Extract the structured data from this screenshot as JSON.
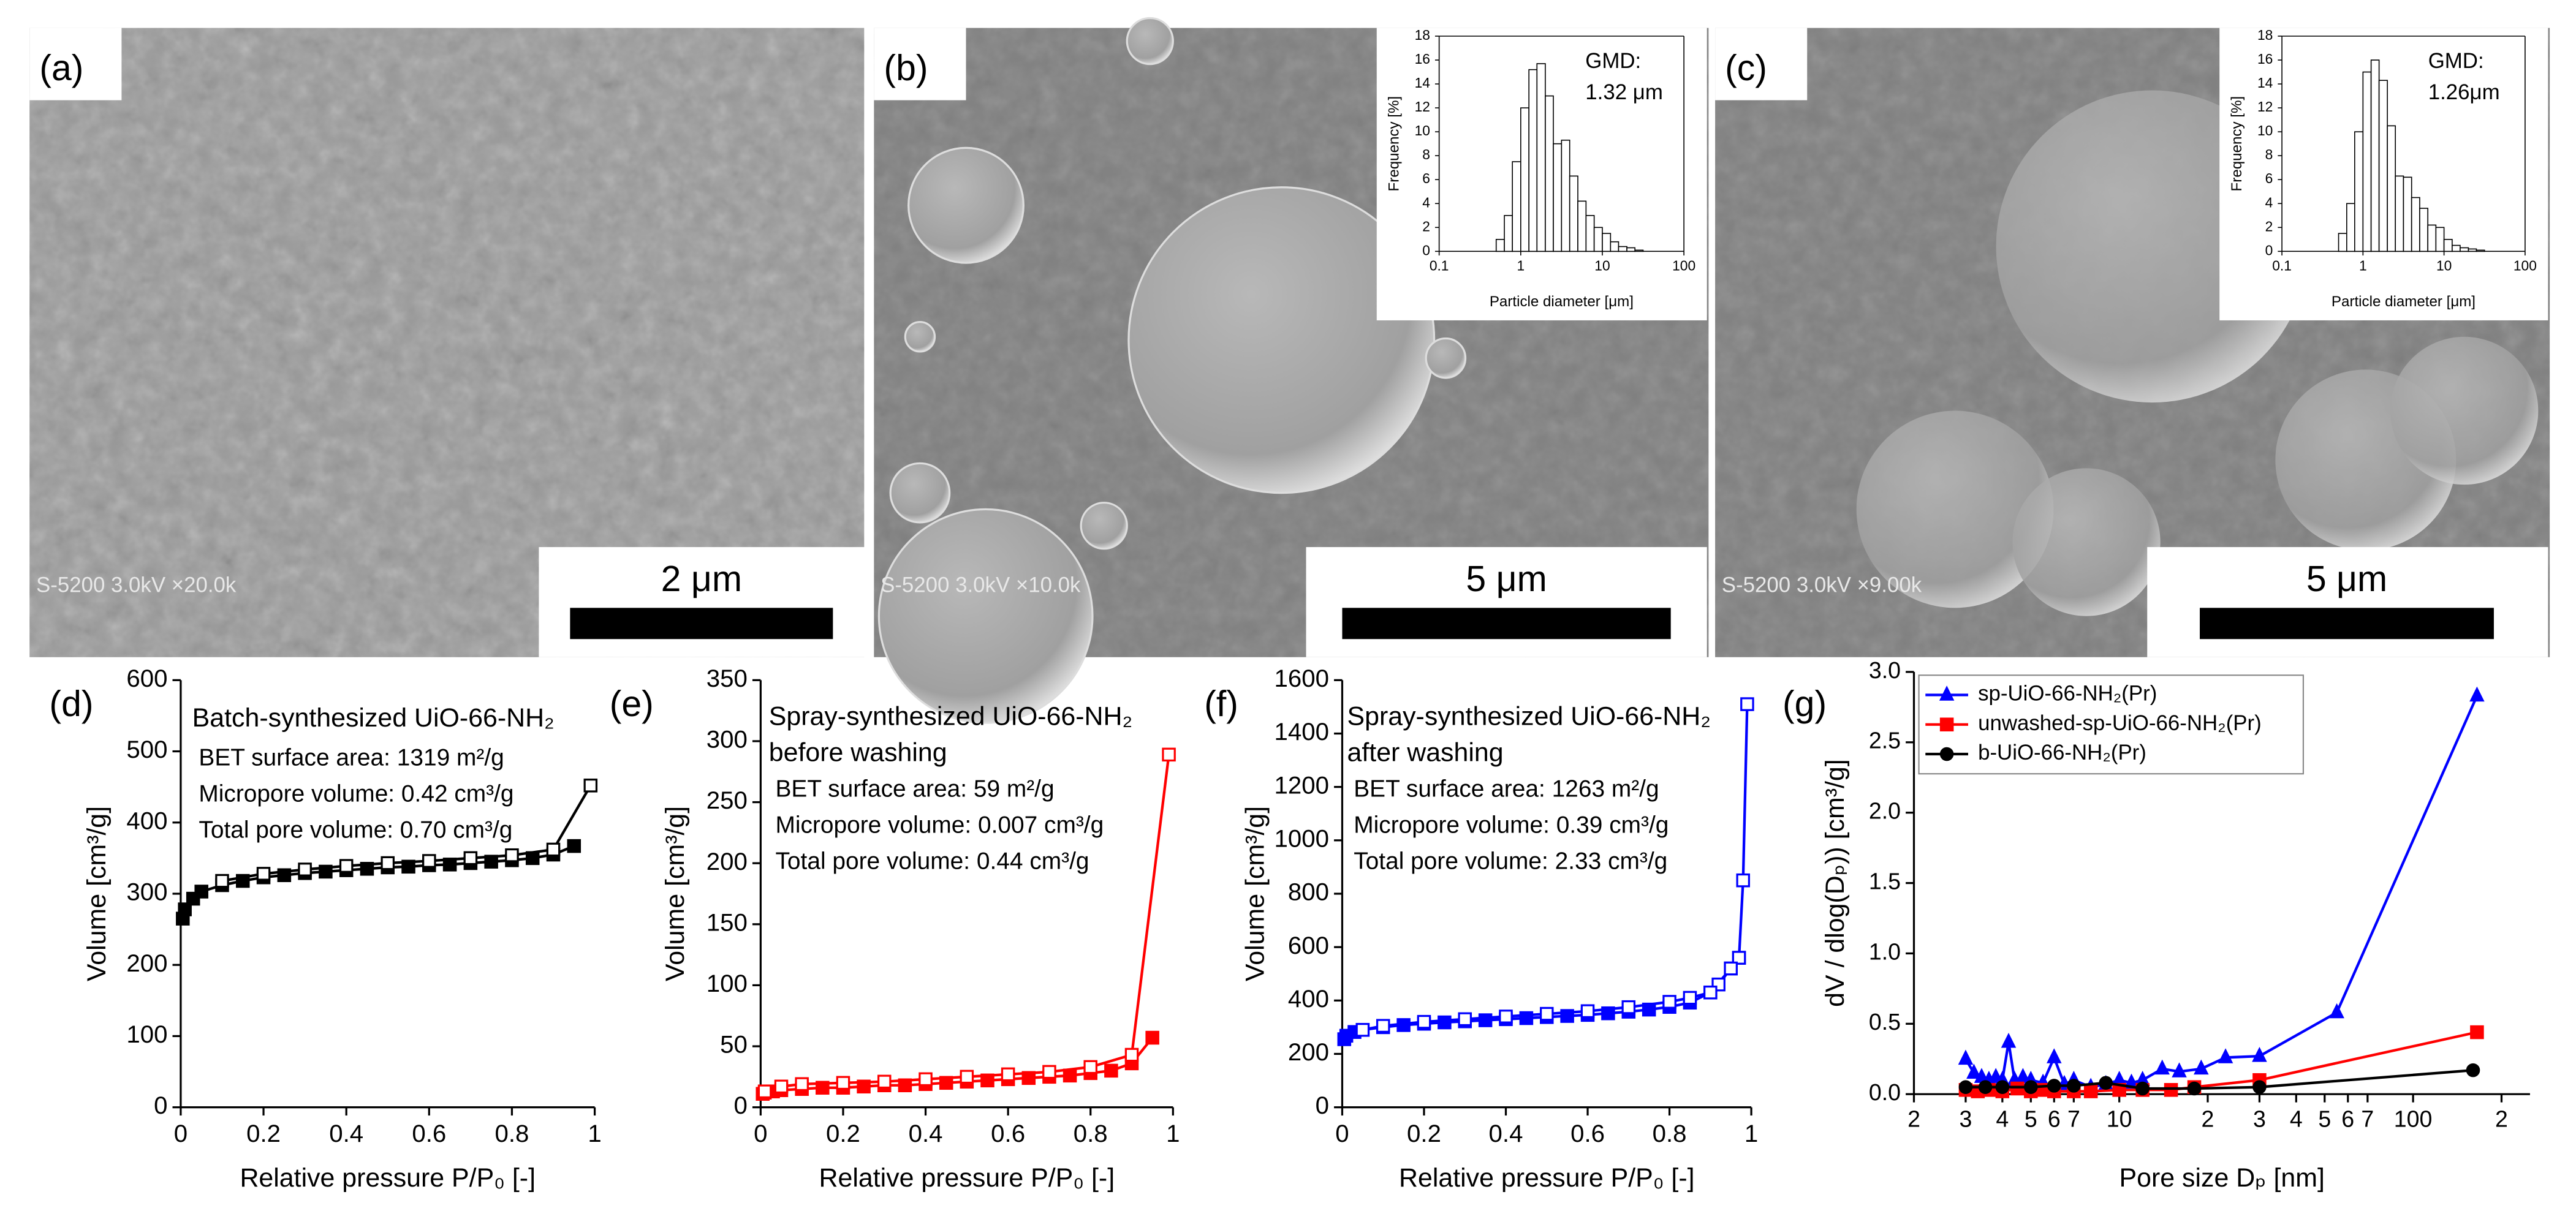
{
  "sem_panels": [
    {
      "label": "(a)",
      "caption": "S-5200 3.0kV ×20.0k",
      "scale_bar": "2 μm"
    },
    {
      "label": "(b)",
      "caption": "S-5200 3.0kV ×10.0k",
      "scale_bar": "5 μm"
    },
    {
      "label": "(c)",
      "caption": "S-5200 3.0kV ×9.00k",
      "scale_bar": "5 μm"
    }
  ],
  "chart_data": [
    {
      "type": "histogram",
      "xscale": "log",
      "xlabel": "Particle diameter [μm]",
      "ylabel": "Frequency [%]",
      "annotations": [
        "GMD:",
        "1.32 μm"
      ],
      "bins": [
        0.5,
        0.63,
        0.79,
        1,
        1.26,
        1.58,
        2,
        2.51,
        3.16,
        3.98,
        5.01,
        6.31,
        7.94,
        10,
        12.6,
        15.8,
        20,
        25.1,
        31.6
      ],
      "values": [
        1,
        3,
        7.5,
        12,
        15.2,
        15.7,
        13,
        9,
        9.3,
        6.3,
        4.2,
        3,
        2,
        1.5,
        0.8,
        0.4,
        0.3,
        0.1
      ],
      "color": "#ffffff",
      "xlim": [
        0.1,
        100
      ],
      "xticks": [
        0.1,
        1,
        10,
        100
      ],
      "ylim": [
        0,
        18
      ],
      "yticks": [
        0,
        2,
        4,
        6,
        8,
        10,
        12,
        14,
        16,
        18
      ]
    },
    {
      "type": "histogram",
      "xscale": "log",
      "xlabel": "Particle diameter [μm]",
      "ylabel": "Frequency [%]",
      "annotations": [
        "GMD:",
        "1.26μm"
      ],
      "bins": [
        0.5,
        0.63,
        0.79,
        1,
        1.26,
        1.58,
        2,
        2.51,
        3.16,
        3.98,
        5.01,
        6.31,
        7.94,
        10,
        12.6,
        15.8,
        20,
        25.1,
        31.6
      ],
      "values": [
        1.5,
        4,
        10,
        15,
        16,
        14.3,
        10.5,
        6.3,
        6.2,
        4.5,
        3.6,
        2.2,
        2,
        1,
        0.5,
        0.3,
        0.2,
        0.1
      ],
      "color": "#ffffff",
      "xlim": [
        0.1,
        100
      ],
      "xticks": [
        0.1,
        1,
        10,
        100
      ],
      "ylim": [
        0,
        18
      ],
      "yticks": [
        0,
        2,
        4,
        6,
        8,
        10,
        12,
        14,
        16,
        18
      ]
    },
    {
      "type": "line",
      "panel": "(d)",
      "title_lines": [
        "Batch-synthesized UiO-66-NH₂"
      ],
      "annotations": [
        "BET surface area: 1319 m²/g",
        "Micropore volume: 0.42 cm³/g",
        "Total pore volume: 0.70 cm³/g"
      ],
      "xlabel": "Relative pressure P/P₀ [-]",
      "ylabel": "Volume [cm³/g]",
      "xlim": [
        0,
        1
      ],
      "xticks": [
        0,
        0.2,
        0.4,
        0.6,
        0.8,
        1
      ],
      "ylim": [
        0,
        600
      ],
      "yticks": [
        0,
        100,
        200,
        300,
        400,
        500,
        600
      ],
      "series": [
        {
          "color": "#000000",
          "marker": "square",
          "filled": true,
          "x": [
            0.005,
            0.01,
            0.03,
            0.05,
            0.1,
            0.15,
            0.2,
            0.25,
            0.3,
            0.35,
            0.4,
            0.45,
            0.5,
            0.55,
            0.6,
            0.65,
            0.7,
            0.75,
            0.8,
            0.85,
            0.9,
            0.95
          ],
          "values": [
            265,
            278,
            293,
            303,
            312,
            318,
            323,
            326,
            329,
            331,
            333,
            335,
            337,
            338,
            340,
            341,
            343,
            345,
            347,
            350,
            355,
            367
          ]
        },
        {
          "color": "#000000",
          "marker": "square",
          "filled": false,
          "x": [
            0.99,
            0.9,
            0.8,
            0.7,
            0.6,
            0.5,
            0.4,
            0.3,
            0.2,
            0.1
          ],
          "values": [
            452,
            362,
            354,
            350,
            346,
            343,
            339,
            334,
            328,
            318
          ]
        }
      ]
    },
    {
      "type": "line",
      "panel": "(e)",
      "title_lines": [
        "Spray-synthesized UiO-66-NH₂",
        "before washing"
      ],
      "annotations": [
        "BET surface area: 59 m²/g",
        "Micropore volume: 0.007 cm³/g",
        "Total pore volume: 0.44 cm³/g"
      ],
      "xlabel": "Relative pressure P/P₀ [-]",
      "ylabel": "Volume [cm³/g]",
      "xlim": [
        0,
        1
      ],
      "xticks": [
        0,
        0.2,
        0.4,
        0.6,
        0.8,
        1
      ],
      "ylim": [
        0,
        350
      ],
      "yticks": [
        0,
        50,
        100,
        150,
        200,
        250,
        300,
        350
      ],
      "series": [
        {
          "color": "#ff0000",
          "marker": "square",
          "filled": true,
          "x": [
            0.005,
            0.01,
            0.03,
            0.05,
            0.1,
            0.15,
            0.2,
            0.25,
            0.3,
            0.35,
            0.4,
            0.45,
            0.5,
            0.55,
            0.6,
            0.65,
            0.7,
            0.75,
            0.8,
            0.85,
            0.9,
            0.95
          ],
          "values": [
            11,
            12,
            13,
            14,
            15,
            16,
            16,
            17,
            18,
            18,
            19,
            20,
            21,
            22,
            23,
            24,
            25,
            26,
            28,
            30,
            36,
            57
          ]
        },
        {
          "color": "#ff0000",
          "marker": "square",
          "filled": false,
          "x": [
            0.99,
            0.9,
            0.8,
            0.7,
            0.6,
            0.5,
            0.4,
            0.3,
            0.2,
            0.1,
            0.05,
            0.01
          ],
          "values": [
            289,
            43,
            33,
            29,
            27,
            25,
            23,
            21,
            20,
            19,
            17,
            13
          ]
        }
      ]
    },
    {
      "type": "line",
      "panel": "(f)",
      "title_lines": [
        "Spray-synthesized UiO-66-NH₂",
        "after washing"
      ],
      "annotations": [
        "BET surface area: 1263 m²/g",
        "Micropore volume: 0.39 cm³/g",
        "Total pore volume: 2.33 cm³/g"
      ],
      "xlabel": "Relative pressure P/P₀ [-]",
      "ylabel": "Volume [cm³/g]",
      "xlim": [
        0,
        1
      ],
      "xticks": [
        0,
        0.2,
        0.4,
        0.6,
        0.8,
        1
      ],
      "ylim": [
        0,
        1600
      ],
      "yticks": [
        0,
        200,
        400,
        600,
        800,
        1000,
        1200,
        1400,
        1600
      ],
      "series": [
        {
          "color": "#0000ff",
          "marker": "square",
          "filled": true,
          "x": [
            0.005,
            0.01,
            0.03,
            0.05,
            0.1,
            0.15,
            0.2,
            0.25,
            0.3,
            0.35,
            0.4,
            0.45,
            0.5,
            0.55,
            0.6,
            0.65,
            0.7,
            0.75,
            0.8,
            0.85,
            0.9,
            0.95,
            0.97
          ],
          "values": [
            255,
            268,
            282,
            290,
            300,
            308,
            313,
            318,
            322,
            326,
            330,
            334,
            338,
            342,
            346,
            352,
            358,
            366,
            376,
            392,
            430,
            520,
            560
          ]
        },
        {
          "color": "#0000ff",
          "marker": "square",
          "filled": false,
          "x": [
            0.99,
            0.98,
            0.97,
            0.95,
            0.92,
            0.9,
            0.85,
            0.8,
            0.7,
            0.6,
            0.5,
            0.4,
            0.3,
            0.2,
            0.1,
            0.05
          ],
          "values": [
            1510,
            850,
            560,
            520,
            460,
            430,
            410,
            395,
            375,
            360,
            350,
            340,
            330,
            320,
            305,
            290
          ]
        }
      ]
    },
    {
      "type": "line",
      "panel": "(g)",
      "xscale": "log",
      "legend": "upper left",
      "xlabel": "Pore size Dₚ [nm]",
      "ylabel": "dV / dlog(Dₚ)) [cm³/g]",
      "xlim": [
        2,
        250
      ],
      "xticks": [
        2,
        3,
        4,
        5,
        6,
        7,
        10,
        {
          "value": 20,
          "label": "2"
        },
        {
          "value": 30,
          "label": "3"
        },
        {
          "value": 40,
          "label": "4"
        },
        {
          "value": 50,
          "label": "5"
        },
        {
          "value": 60,
          "label": "6"
        },
        {
          "value": 70,
          "label": "7"
        },
        100,
        {
          "value": 200,
          "label": "2"
        }
      ],
      "ylim": [
        0,
        3
      ],
      "yticks": [
        {
          "value": 0,
          "label": "0.0"
        },
        0.5,
        {
          "value": 1,
          "label": "1.0"
        },
        1.5,
        {
          "value": 2,
          "label": "2.0"
        },
        2.5,
        {
          "value": 3,
          "label": "3.0"
        }
      ],
      "series": [
        {
          "name": "sp-UiO-66-NH₂(Pr)",
          "color": "#0000ff",
          "marker": "triangle",
          "filled": true,
          "x": [
            3,
            3.2,
            3.4,
            3.6,
            3.8,
            4,
            4.2,
            4.4,
            4.7,
            5,
            5.5,
            6,
            6.5,
            7,
            8,
            9,
            10,
            11,
            12,
            14,
            16,
            19,
            23,
            30,
            55,
            165
          ],
          "values": [
            0.25,
            0.15,
            0.12,
            0.1,
            0.12,
            0.1,
            0.37,
            0.1,
            0.12,
            0.1,
            0.08,
            0.26,
            0.07,
            0.1,
            0.05,
            0.07,
            0.1,
            0.08,
            0.1,
            0.18,
            0.16,
            0.18,
            0.26,
            0.27,
            0.58,
            2.83
          ]
        },
        {
          "name": "unwashed-sp-UiO-66-NH₂(Pr)",
          "color": "#ff0000",
          "marker": "square",
          "filled": true,
          "x": [
            3,
            3.3,
            3.6,
            4,
            4.5,
            5,
            5.5,
            6,
            7,
            8,
            10,
            12,
            15,
            18,
            30,
            165
          ],
          "values": [
            0.03,
            0.02,
            0.03,
            0.02,
            0.04,
            0.02,
            0.03,
            0.02,
            0.02,
            0.02,
            0.03,
            0.03,
            0.03,
            0.05,
            0.1,
            0.44
          ]
        },
        {
          "name": "b-UiO-66-NH₂(Pr)",
          "color": "#000000",
          "marker": "circle",
          "filled": true,
          "x": [
            3,
            3.5,
            4,
            5,
            6,
            7,
            9,
            12,
            18,
            30,
            160
          ],
          "values": [
            0.05,
            0.05,
            0.05,
            0.05,
            0.06,
            0.06,
            0.08,
            0.04,
            0.04,
            0.05,
            0.17
          ]
        }
      ]
    }
  ]
}
